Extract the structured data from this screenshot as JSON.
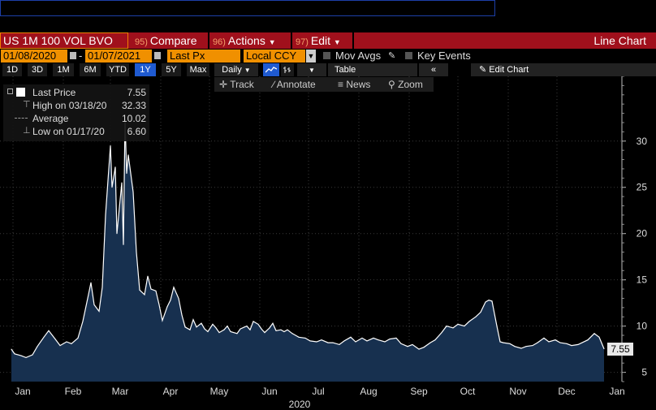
{
  "colors": {
    "accent_red": "#a0101c",
    "field_orange": "#f09000",
    "line": "#ffffff",
    "area": "#17304f",
    "select_blue": "#1f5ad0"
  },
  "header": {
    "security": "US 1M 100 VOL BVO",
    "menu": [
      {
        "num": "95)",
        "label": "Compare"
      },
      {
        "num": "96)",
        "label": "Actions"
      },
      {
        "num": "97)",
        "label": "Edit"
      }
    ],
    "view_title": "Line Chart"
  },
  "controls": {
    "start_date": "01/08/2020",
    "end_date": "01/07/2021",
    "field": "Last Px",
    "currency": "Local CCY",
    "mov_avgs": "Mov Avgs",
    "key_events": "Key Events"
  },
  "periods": [
    "1D",
    "3D",
    "1M",
    "6M",
    "YTD",
    "1Y",
    "5Y",
    "Max"
  ],
  "selected_period": "1Y",
  "frequency": "Daily",
  "table_label": "Table",
  "collapse_icon": "«",
  "edit_chart_label": "Edit Chart",
  "toolbar": {
    "track": "Track",
    "annotate": "Annotate",
    "news": "News",
    "zoom": "Zoom"
  },
  "legend": [
    {
      "label": "Last Price",
      "value": "7.55",
      "icon": "square-icon"
    },
    {
      "label": "High on 03/18/20",
      "value": "32.33",
      "icon": "high-marker-icon"
    },
    {
      "label": "Average",
      "value": "10.02",
      "icon": "average-line-icon"
    },
    {
      "label": "Low on 01/17/20",
      "value": "6.60",
      "icon": "low-marker-icon"
    }
  ],
  "last_price_label": "7.55",
  "chart_data": {
    "type": "area",
    "xlabel": "2020",
    "ylabel": "",
    "ylim": [
      4,
      37
    ],
    "y_ticks": [
      5,
      10,
      15,
      20,
      25,
      30
    ],
    "x_tick_labels": [
      "Jan",
      "Feb",
      "Mar",
      "Apr",
      "May",
      "Jun",
      "Jul",
      "Aug",
      "Sep",
      "Oct",
      "Nov",
      "Dec",
      "Jan"
    ],
    "x_tick_dates": [
      "2020-01-15",
      "2020-02-15",
      "2020-03-15",
      "2020-04-15",
      "2020-05-15",
      "2020-06-15",
      "2020-07-15",
      "2020-08-15",
      "2020-09-15",
      "2020-10-15",
      "2020-11-15",
      "2020-12-15",
      "2021-01-15"
    ],
    "x_range": [
      "2020-01-01",
      "2021-01-18"
    ],
    "series": [
      {
        "name": "Last Price",
        "points": [
          [
            "2020-01-08",
            7.5
          ],
          [
            "2020-01-10",
            7.0
          ],
          [
            "2020-01-14",
            6.8
          ],
          [
            "2020-01-17",
            6.6
          ],
          [
            "2020-01-21",
            6.9
          ],
          [
            "2020-01-24",
            7.8
          ],
          [
            "2020-01-28",
            8.8
          ],
          [
            "2020-01-31",
            9.5
          ],
          [
            "2020-02-04",
            8.6
          ],
          [
            "2020-02-07",
            7.9
          ],
          [
            "2020-02-11",
            8.3
          ],
          [
            "2020-02-14",
            8.1
          ],
          [
            "2020-02-18",
            8.7
          ],
          [
            "2020-02-21",
            10.5
          ],
          [
            "2020-02-24",
            13.0
          ],
          [
            "2020-02-26",
            14.7
          ],
          [
            "2020-02-28",
            12.3
          ],
          [
            "2020-03-02",
            11.6
          ],
          [
            "2020-03-04",
            14.2
          ],
          [
            "2020-03-06",
            22.0
          ],
          [
            "2020-03-09",
            29.5
          ],
          [
            "2020-03-10",
            25.0
          ],
          [
            "2020-03-12",
            27.2
          ],
          [
            "2020-03-13",
            20.0
          ],
          [
            "2020-03-16",
            25.5
          ],
          [
            "2020-03-17",
            18.8
          ],
          [
            "2020-03-18",
            32.33
          ],
          [
            "2020-03-19",
            26.5
          ],
          [
            "2020-03-20",
            28.5
          ],
          [
            "2020-03-23",
            24.5
          ],
          [
            "2020-03-25",
            18.0
          ],
          [
            "2020-03-27",
            13.9
          ],
          [
            "2020-03-30",
            13.4
          ],
          [
            "2020-04-01",
            15.4
          ],
          [
            "2020-04-03",
            14.0
          ],
          [
            "2020-04-06",
            13.8
          ],
          [
            "2020-04-08",
            12.3
          ],
          [
            "2020-04-10",
            10.6
          ],
          [
            "2020-04-13",
            12.1
          ],
          [
            "2020-04-15",
            12.8
          ],
          [
            "2020-04-17",
            14.2
          ],
          [
            "2020-04-20",
            13.0
          ],
          [
            "2020-04-22",
            11.2
          ],
          [
            "2020-04-24",
            9.9
          ],
          [
            "2020-04-27",
            9.6
          ],
          [
            "2020-04-29",
            10.7
          ],
          [
            "2020-05-01",
            9.9
          ],
          [
            "2020-05-04",
            10.3
          ],
          [
            "2020-05-06",
            9.7
          ],
          [
            "2020-05-08",
            9.4
          ],
          [
            "2020-05-11",
            10.2
          ],
          [
            "2020-05-13",
            9.8
          ],
          [
            "2020-05-15",
            9.3
          ],
          [
            "2020-05-18",
            9.6
          ],
          [
            "2020-05-20",
            10.0
          ],
          [
            "2020-05-22",
            9.4
          ],
          [
            "2020-05-26",
            9.2
          ],
          [
            "2020-05-28",
            9.7
          ],
          [
            "2020-06-01",
            10.0
          ],
          [
            "2020-06-03",
            9.6
          ],
          [
            "2020-06-05",
            10.5
          ],
          [
            "2020-06-08",
            10.2
          ],
          [
            "2020-06-10",
            9.7
          ],
          [
            "2020-06-12",
            9.3
          ],
          [
            "2020-06-15",
            9.8
          ],
          [
            "2020-06-17",
            10.3
          ],
          [
            "2020-06-19",
            9.5
          ],
          [
            "2020-06-22",
            9.6
          ],
          [
            "2020-06-24",
            9.4
          ],
          [
            "2020-06-26",
            9.6
          ],
          [
            "2020-06-29",
            9.2
          ],
          [
            "2020-07-01",
            9.0
          ],
          [
            "2020-07-03",
            8.8
          ],
          [
            "2020-07-07",
            8.7
          ],
          [
            "2020-07-10",
            8.4
          ],
          [
            "2020-07-14",
            8.3
          ],
          [
            "2020-07-17",
            8.5
          ],
          [
            "2020-07-21",
            8.2
          ],
          [
            "2020-07-24",
            8.2
          ],
          [
            "2020-07-28",
            8.0
          ],
          [
            "2020-07-31",
            8.4
          ],
          [
            "2020-08-04",
            8.8
          ],
          [
            "2020-08-07",
            8.3
          ],
          [
            "2020-08-11",
            8.7
          ],
          [
            "2020-08-14",
            8.4
          ],
          [
            "2020-08-18",
            8.7
          ],
          [
            "2020-08-21",
            8.5
          ],
          [
            "2020-08-25",
            8.3
          ],
          [
            "2020-08-28",
            8.6
          ],
          [
            "2020-09-01",
            8.7
          ],
          [
            "2020-09-04",
            8.1
          ],
          [
            "2020-09-08",
            7.8
          ],
          [
            "2020-09-11",
            8.0
          ],
          [
            "2020-09-15",
            7.5
          ],
          [
            "2020-09-18",
            7.7
          ],
          [
            "2020-09-22",
            8.2
          ],
          [
            "2020-09-25",
            8.5
          ],
          [
            "2020-09-29",
            9.3
          ],
          [
            "2020-10-02",
            10.0
          ],
          [
            "2020-10-06",
            9.8
          ],
          [
            "2020-10-09",
            10.2
          ],
          [
            "2020-10-13",
            10.0
          ],
          [
            "2020-10-16",
            10.5
          ],
          [
            "2020-10-20",
            11.0
          ],
          [
            "2020-10-23",
            11.5
          ],
          [
            "2020-10-26",
            12.6
          ],
          [
            "2020-10-28",
            12.8
          ],
          [
            "2020-10-30",
            12.7
          ],
          [
            "2020-11-02",
            10.0
          ],
          [
            "2020-11-04",
            8.3
          ],
          [
            "2020-11-06",
            8.2
          ],
          [
            "2020-11-10",
            8.1
          ],
          [
            "2020-11-13",
            7.8
          ],
          [
            "2020-11-17",
            7.6
          ],
          [
            "2020-11-20",
            7.8
          ],
          [
            "2020-11-24",
            7.9
          ],
          [
            "2020-11-27",
            8.2
          ],
          [
            "2020-12-01",
            8.7
          ],
          [
            "2020-12-04",
            8.3
          ],
          [
            "2020-12-08",
            8.5
          ],
          [
            "2020-12-11",
            8.2
          ],
          [
            "2020-12-15",
            8.1
          ],
          [
            "2020-12-18",
            7.9
          ],
          [
            "2020-12-22",
            8.0
          ],
          [
            "2020-12-28",
            8.5
          ],
          [
            "2021-01-01",
            9.2
          ],
          [
            "2021-01-04",
            8.8
          ],
          [
            "2021-01-07",
            7.55
          ]
        ]
      }
    ]
  }
}
